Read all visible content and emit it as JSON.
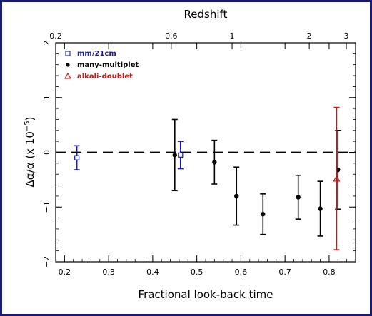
{
  "chart_data": {
    "type": "scatter",
    "title": "",
    "xlabel": "Fractional look-back time",
    "ylabel": "Δα/α  (x 10",
    "ylabel_exponent": "−5",
    "ylabel_close": ")",
    "top_xlabel": "Redshift",
    "xlim": [
      0.18,
      0.86
    ],
    "ylim": [
      -2,
      2
    ],
    "x_ticks": [
      0.2,
      0.3,
      0.4,
      0.5,
      0.6,
      0.7,
      0.8
    ],
    "x_tick_labels": [
      "0.2",
      "0.3",
      "0.4",
      "0.5",
      "0.6",
      "0.7",
      "0.8"
    ],
    "y_ticks": [
      -2,
      -1,
      0,
      1,
      2
    ],
    "y_tick_labels": [
      "−2",
      "−1",
      "0",
      "1",
      "2"
    ],
    "top_ticks": [
      {
        "label": "0.2",
        "x": 0.18
      },
      {
        "label": "0.6",
        "x": 0.442
      },
      {
        "label": "1",
        "x": 0.58
      },
      {
        "label": "2",
        "x": 0.755
      },
      {
        "label": "3",
        "x": 0.839
      }
    ],
    "reference_line": {
      "y": 0,
      "style": "dashed"
    },
    "legend_position": "top-left",
    "series": [
      {
        "name": "mm/21cm",
        "color": "#1a1aa8",
        "marker": "square",
        "points": [
          {
            "x": 0.228,
            "y": -0.1,
            "err": 0.22
          },
          {
            "x": 0.463,
            "y": -0.05,
            "err": 0.25
          }
        ]
      },
      {
        "name": "many-multiplet",
        "color": "#000000",
        "marker": "dot",
        "points": [
          {
            "x": 0.45,
            "y": -0.05,
            "err": 0.65
          },
          {
            "x": 0.54,
            "y": -0.18,
            "err": 0.4
          },
          {
            "x": 0.59,
            "y": -0.8,
            "err": 0.53
          },
          {
            "x": 0.65,
            "y": -1.13,
            "err": 0.37
          },
          {
            "x": 0.73,
            "y": -0.82,
            "err": 0.4
          },
          {
            "x": 0.78,
            "y": -1.03,
            "err": 0.5
          },
          {
            "x": 0.82,
            "y": -0.32,
            "err": 0.72
          }
        ]
      },
      {
        "name": "alkali-doublet",
        "color": "#c81414",
        "marker": "triangle",
        "points": [
          {
            "x": 0.817,
            "y": -0.48,
            "err": 1.3
          }
        ]
      }
    ]
  }
}
